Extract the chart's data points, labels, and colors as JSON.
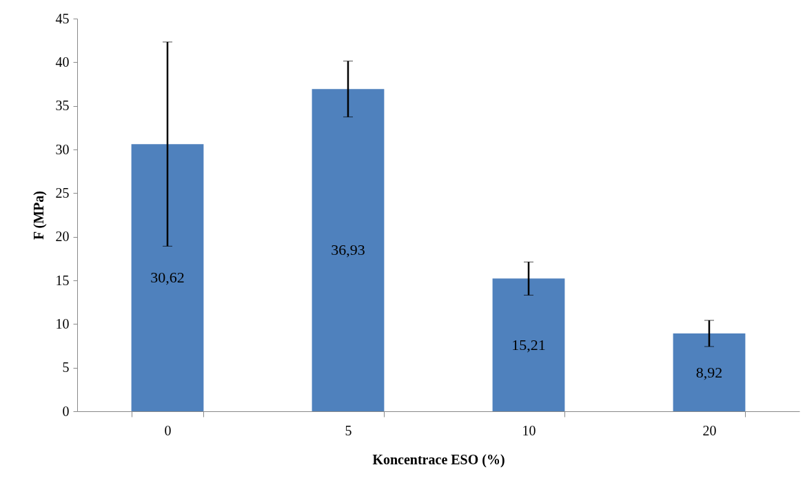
{
  "chart_data": {
    "type": "bar",
    "xlabel": "Koncentrace ESO (%)",
    "ylabel": "F (MPa)",
    "categories": [
      "0",
      "5",
      "10",
      "20"
    ],
    "values": [
      30.62,
      36.93,
      15.21,
      8.92
    ],
    "value_labels": [
      "30,62",
      "36,93",
      "15,21",
      "8,92"
    ],
    "errors": [
      11.7,
      3.2,
      1.9,
      1.5
    ],
    "color": "#4f81bd",
    "ylim": [
      0,
      45
    ],
    "yticks": [
      0,
      5,
      10,
      15,
      20,
      25,
      30,
      35,
      40,
      45
    ],
    "grid": false
  }
}
